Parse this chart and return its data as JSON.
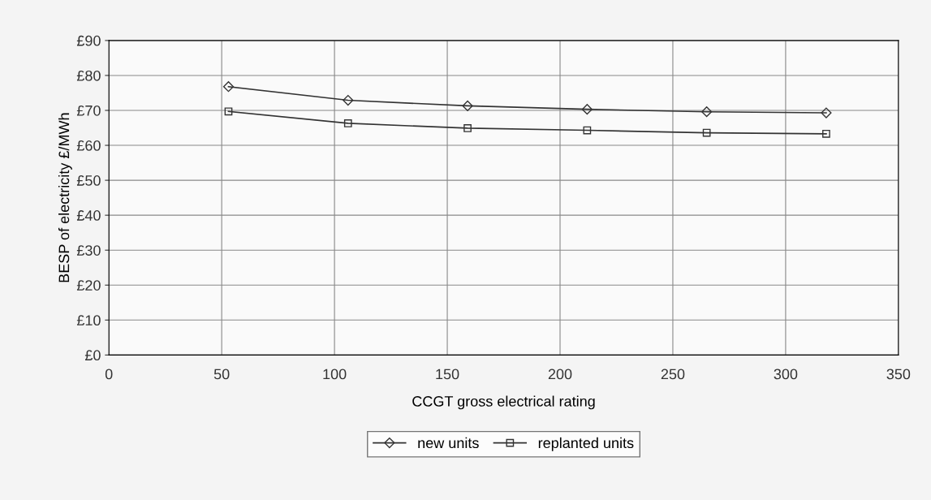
{
  "chart_data": {
    "type": "line",
    "xlabel": "CCGT gross electrical rating",
    "ylabel": "BESP of electricity £/MWh",
    "x": [
      53,
      106,
      159,
      212,
      265,
      318
    ],
    "series": [
      {
        "name": "new units",
        "color": "#333333",
        "marker": "diamond",
        "values": [
          76.8,
          72.9,
          71.3,
          70.3,
          69.6,
          69.3
        ]
      },
      {
        "name": "replanted units",
        "color": "#333333",
        "marker": "square",
        "values": [
          69.7,
          66.3,
          64.9,
          64.3,
          63.6,
          63.3
        ]
      }
    ],
    "xlim": [
      0,
      350
    ],
    "xticks": [
      0,
      50,
      100,
      150,
      200,
      250,
      300,
      350
    ],
    "ylim": [
      0,
      90
    ],
    "yticks": [
      {
        "value": 0,
        "label": "£0"
      },
      {
        "value": 10,
        "label": "£10"
      },
      {
        "value": 20,
        "label": "£20"
      },
      {
        "value": 30,
        "label": "£30"
      },
      {
        "value": 40,
        "label": "£40"
      },
      {
        "value": 50,
        "label": "£50"
      },
      {
        "value": 60,
        "label": "£60"
      },
      {
        "value": 70,
        "label": "£70"
      },
      {
        "value": 80,
        "label": "£80"
      },
      {
        "value": 90,
        "label": "£90"
      }
    ],
    "grid": true,
    "legend": "bottom",
    "line_style": "solid"
  }
}
